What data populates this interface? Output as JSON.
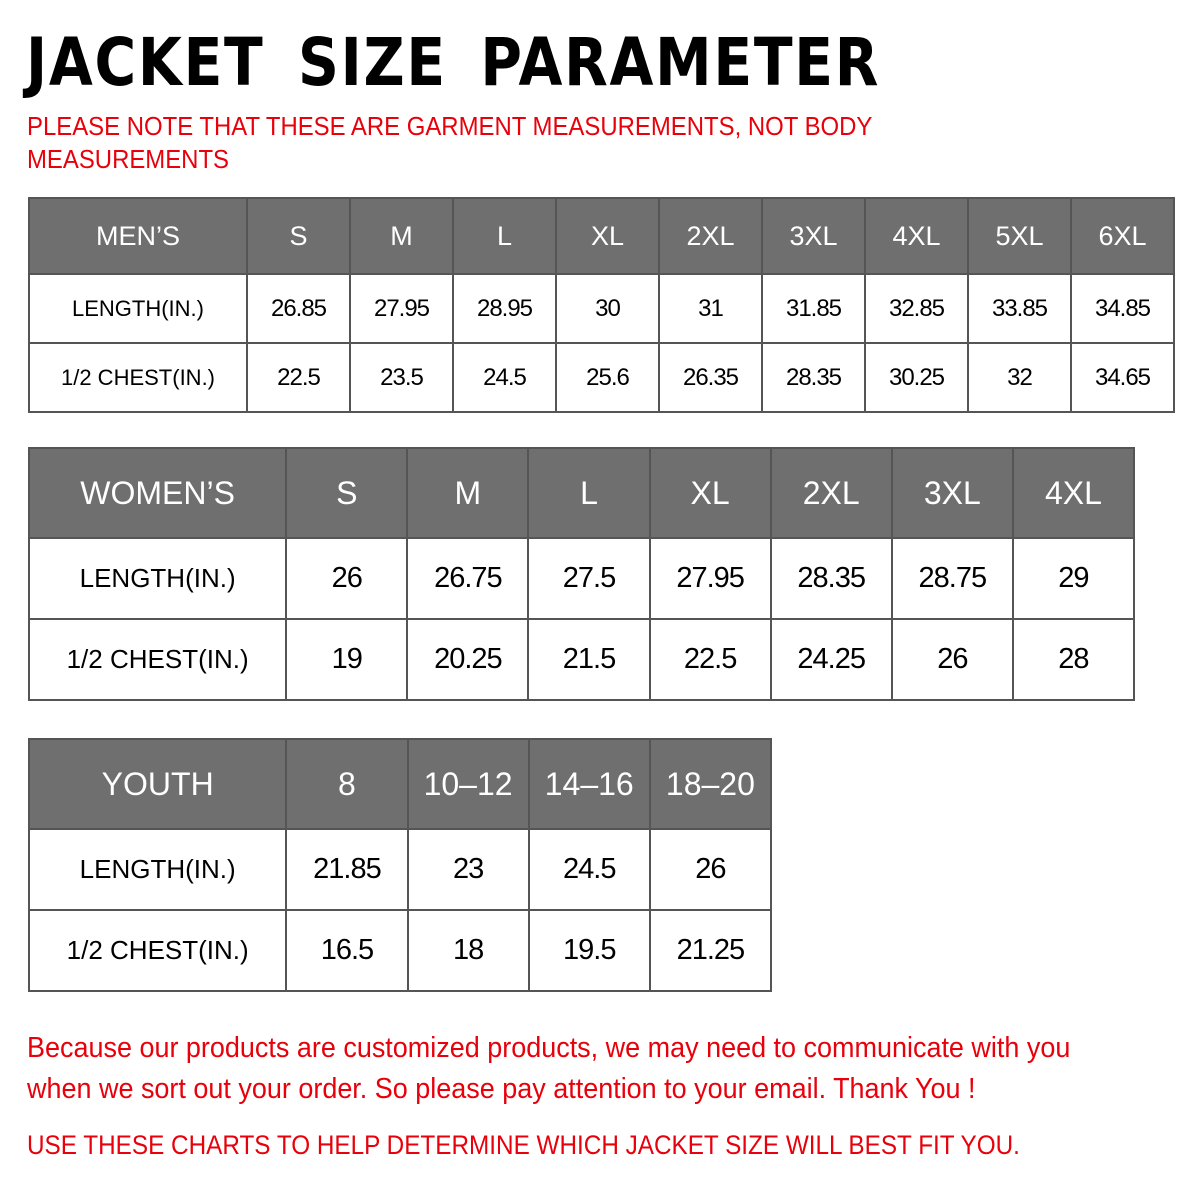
{
  "title": "JACKET SIZE PARAMETER",
  "note": "PLEASE NOTE THAT THESE ARE GARMENT MEASUREMENTS, NOT BODY MEASUREMENTS",
  "tables": {
    "mens": {
      "header": [
        "MEN’S",
        "S",
        "M",
        "L",
        "XL",
        "2XL",
        "3XL",
        "4XL",
        "5XL",
        "6XL"
      ],
      "rows": [
        [
          "LENGTH(IN.)",
          "26.85",
          "27.95",
          "28.95",
          "30",
          "31",
          "31.85",
          "32.85",
          "33.85",
          "34.85"
        ],
        [
          "1/2 CHEST(IN.)",
          "22.5",
          "23.5",
          "24.5",
          "25.6",
          "26.35",
          "28.35",
          "30.25",
          "32",
          "34.65"
        ]
      ]
    },
    "womens": {
      "header": [
        "WOMEN’S",
        "S",
        "M",
        "L",
        "XL",
        "2XL",
        "3XL",
        "4XL"
      ],
      "rows": [
        [
          "LENGTH(IN.)",
          "26",
          "26.75",
          "27.5",
          "27.95",
          "28.35",
          "28.75",
          "29"
        ],
        [
          "1/2 CHEST(IN.)",
          "19",
          "20.25",
          "21.5",
          "22.5",
          "24.25",
          "26",
          "28"
        ]
      ]
    },
    "youth": {
      "header": [
        "YOUTH",
        "8",
        "10–12",
        "14–16",
        "18–20"
      ],
      "rows": [
        [
          "LENGTH(IN.)",
          "21.85",
          "23",
          "24.5",
          "26"
        ],
        [
          "1/2 CHEST(IN.)",
          "16.5",
          "18",
          "19.5",
          "21.25"
        ]
      ]
    }
  },
  "footer": "Because our products are customized products, we may need to communicate with you when we sort out your order. So please pay attention to your email. Thank You !",
  "footer2": "USE THESE CHARTS TO HELP DETERMINE WHICH JACKET SIZE WILL BEST FIT YOU.",
  "colors": {
    "header_bg": "#6f6f6f",
    "note_red": "#e8000b"
  }
}
